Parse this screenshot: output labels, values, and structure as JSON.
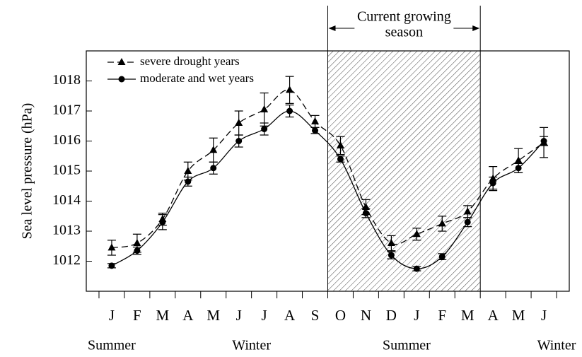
{
  "chart_data": {
    "type": "line",
    "y_label": "Sea level pressure (hPa)",
    "annotation": [
      "Current growing",
      "season"
    ],
    "categories": [
      "J",
      "F",
      "M",
      "A",
      "M",
      "J",
      "J",
      "A",
      "S",
      "O",
      "N",
      "D",
      "J",
      "F",
      "M",
      "A",
      "M",
      "J"
    ],
    "season_labels": [
      "Summer",
      "Winter",
      "Summer",
      "Winter"
    ],
    "shaded_categories": [
      9,
      14
    ],
    "ylim": [
      1011,
      1019
    ],
    "yticks": [
      1012,
      1013,
      1014,
      1015,
      1016,
      1017,
      1018
    ],
    "grid": false,
    "legend": "upper left",
    "series": [
      {
        "name": "severe drought years",
        "color": "#000000",
        "marker": "triangle",
        "dash": true,
        "values": [
          1012.45,
          1012.6,
          1013.4,
          1015.0,
          1015.7,
          1016.6,
          1017.05,
          1017.7,
          1016.65,
          1015.85,
          1013.8,
          1012.6,
          1012.9,
          1013.25,
          1013.65,
          1014.75,
          1015.35,
          1015.95
        ],
        "errors": [
          0.25,
          0.3,
          0.2,
          0.3,
          0.4,
          0.4,
          0.55,
          0.45,
          0.2,
          0.3,
          0.25,
          0.25,
          0.2,
          0.25,
          0.2,
          0.4,
          0.4,
          0.5
        ]
      },
      {
        "name": "moderate and wet years",
        "color": "#000000",
        "marker": "circle",
        "dash": false,
        "values": [
          1011.85,
          1012.35,
          1013.3,
          1014.65,
          1015.1,
          1016.0,
          1016.4,
          1017.0,
          1016.35,
          1015.4,
          1013.6,
          1012.2,
          1011.75,
          1012.15,
          1013.3,
          1014.6,
          1015.1,
          1016.0
        ],
        "errors": [
          0.07,
          0.12,
          0.25,
          0.15,
          0.2,
          0.2,
          0.2,
          0.2,
          0.1,
          0.1,
          0.15,
          0.12,
          0.07,
          0.1,
          0.15,
          0.2,
          0.15,
          0.15
        ]
      }
    ]
  }
}
